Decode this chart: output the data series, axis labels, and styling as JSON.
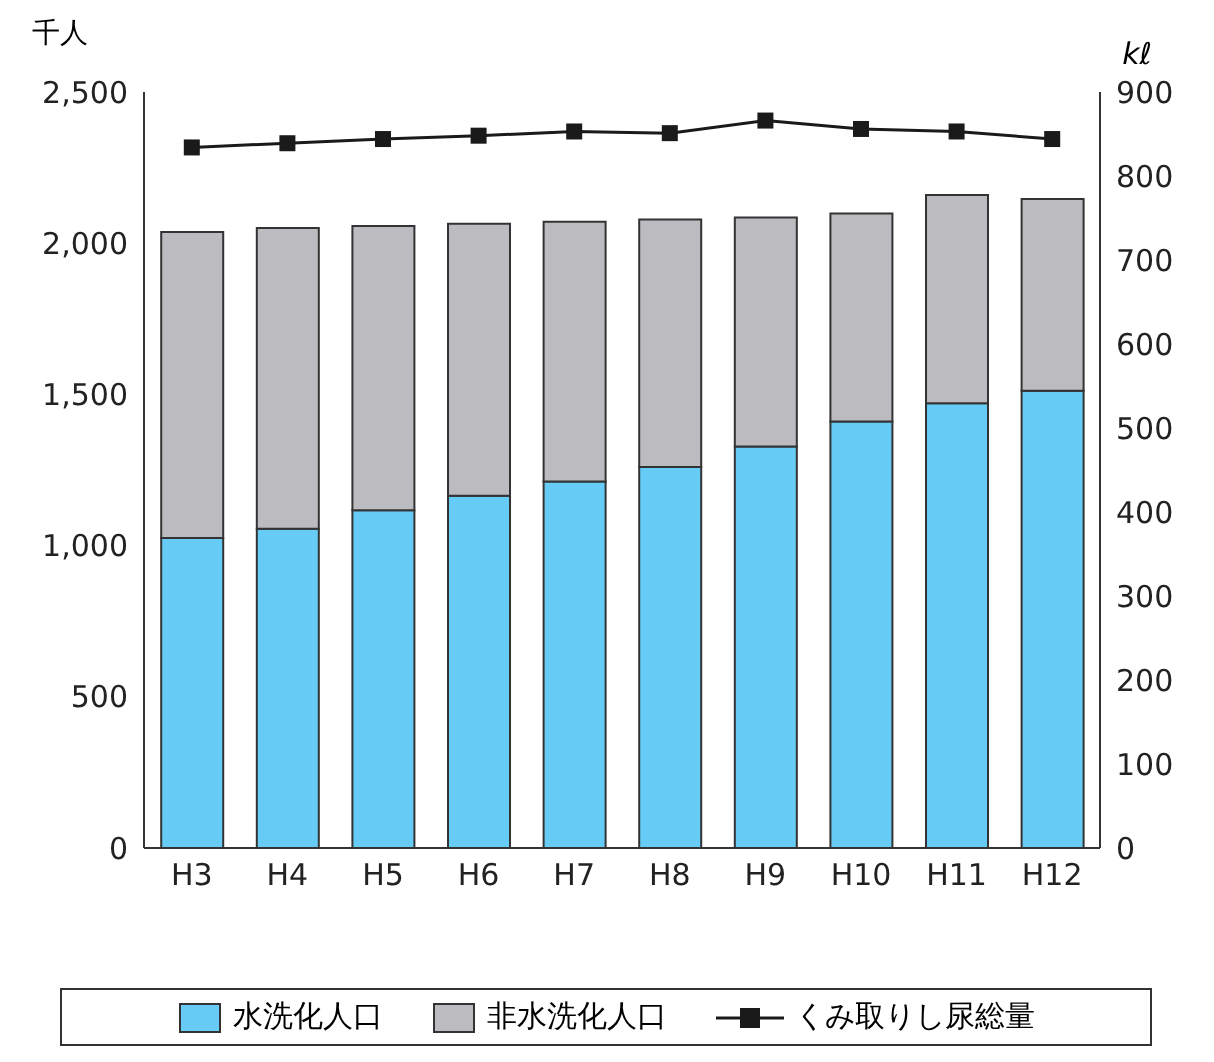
{
  "chart_data": {
    "type": "bar",
    "stacked": true,
    "ylabel": "千人",
    "y2label": "kℓ",
    "categories": [
      "H3",
      "H4",
      "H5",
      "H6",
      "H7",
      "H8",
      "H9",
      "H10",
      "H11",
      "H12"
    ],
    "series": [
      {
        "name": "水洗化人口",
        "color": "#66ccf5",
        "values": [
          1025,
          1056,
          1117,
          1165,
          1212,
          1260,
          1328,
          1410,
          1471,
          1512
        ]
      },
      {
        "name": "非水洗化人口",
        "color": "#bcbcc0",
        "values": [
          1012,
          994,
          940,
          899,
          859,
          818,
          757,
          688,
          688,
          634
        ]
      },
      {
        "name": "くみ取りし尿総量",
        "type": "line",
        "axis": "y2",
        "color": "#1a1a1a",
        "marker": "square",
        "values": [
          834,
          839,
          844,
          848,
          853,
          851,
          866,
          856,
          853,
          844
        ]
      }
    ],
    "ylim": [
      0,
      2500
    ],
    "yticks": [
      0,
      500,
      {
        "value": 1000,
        "label": "1,000"
      },
      {
        "value": 1500,
        "label": "1,500"
      },
      {
        "value": 2000,
        "label": "2,000"
      },
      {
        "value": 2500,
        "label": "2,500"
      }
    ],
    "y2lim": [
      0,
      900
    ],
    "y2ticks": [
      0,
      100,
      200,
      300,
      400,
      500,
      600,
      700,
      800,
      900
    ],
    "legend": "bottom"
  }
}
